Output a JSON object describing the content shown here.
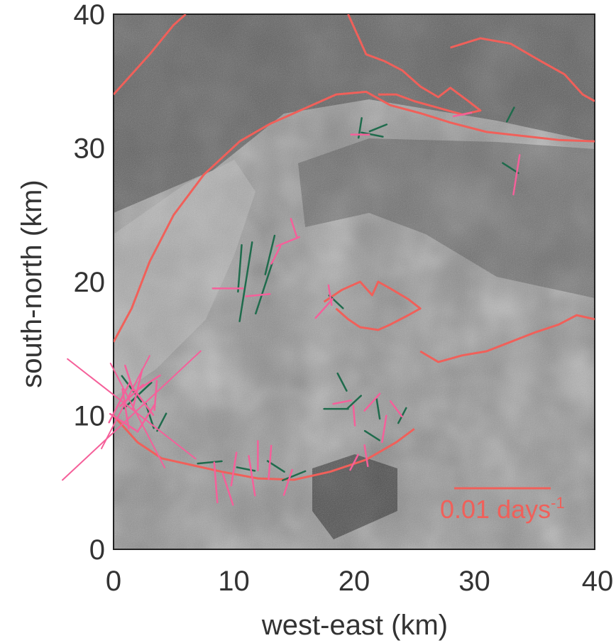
{
  "chart_data": {
    "type": "scatter",
    "title": "",
    "xlabel": "west-east (km)",
    "ylabel": "south-north (km)",
    "xlim": [
      0,
      40
    ],
    "ylim": [
      0,
      40
    ],
    "xticks": [
      "0",
      "10",
      "20",
      "30",
      "40"
    ],
    "yticks": [
      "0",
      "10",
      "20",
      "30",
      "40"
    ],
    "grid": false,
    "legend": "none",
    "background": "grayscale satellite (SAR) image of a glacier",
    "scale_bar": {
      "label": "0.01 days",
      "exponent": "-1"
    },
    "colors": {
      "outline": "#f0605a",
      "pink": "#f5609a",
      "green": "#1f6b4c",
      "text": "#333333"
    },
    "outline_km": [
      [
        0.0,
        15.5
      ],
      [
        1.5,
        18.0
      ],
      [
        3.0,
        21.5
      ],
      [
        5.0,
        25.0
      ],
      [
        7.5,
        28.0
      ],
      [
        10.5,
        30.5
      ],
      [
        13.0,
        31.8
      ],
      [
        16.0,
        33.0
      ],
      [
        18.5,
        34.0
      ],
      [
        21.0,
        34.2
      ],
      [
        23.0,
        33.2
      ],
      [
        25.5,
        32.6
      ],
      [
        28.0,
        31.9
      ],
      [
        31.0,
        31.2
      ],
      [
        34.0,
        30.9
      ],
      [
        37.0,
        30.6
      ],
      [
        40.0,
        30.5
      ]
    ],
    "outline2_km": [
      [
        0.0,
        10.0
      ],
      [
        2.0,
        8.0
      ],
      [
        4.0,
        6.8
      ],
      [
        6.5,
        6.3
      ],
      [
        9.0,
        5.8
      ],
      [
        12.0,
        5.3
      ],
      [
        15.0,
        5.2
      ],
      [
        18.0,
        5.8
      ],
      [
        21.0,
        6.7
      ],
      [
        23.5,
        8.0
      ],
      [
        25.0,
        9.0
      ]
    ],
    "outline3_km": [
      [
        17.5,
        18.5
      ],
      [
        19.0,
        19.4
      ],
      [
        20.5,
        20.0
      ],
      [
        21.5,
        19.0
      ],
      [
        22.0,
        20.0
      ],
      [
        23.0,
        19.5
      ],
      [
        24.5,
        18.7
      ],
      [
        25.5,
        18.0
      ],
      [
        24.5,
        17.5
      ],
      [
        23.0,
        16.8
      ],
      [
        22.0,
        16.4
      ],
      [
        20.5,
        16.6
      ],
      [
        19.5,
        17.2
      ],
      [
        18.5,
        18.0
      ]
    ],
    "outline4_km": [
      [
        25.5,
        14.8
      ],
      [
        27.0,
        14.0
      ],
      [
        29.0,
        14.5
      ],
      [
        31.0,
        14.8
      ],
      [
        33.0,
        15.5
      ],
      [
        35.0,
        16.2
      ],
      [
        37.0,
        16.8
      ],
      [
        38.5,
        17.5
      ],
      [
        40.0,
        17.2
      ]
    ],
    "outline5_km": [
      [
        0.0,
        34.0
      ],
      [
        1.5,
        35.5
      ],
      [
        3.0,
        37.0
      ],
      [
        5.0,
        39.2
      ],
      [
        6.0,
        40.0
      ]
    ],
    "outline6_km": [
      [
        19.5,
        40.0
      ],
      [
        21.0,
        37.0
      ],
      [
        22.5,
        36.5
      ],
      [
        24.0,
        35.8
      ],
      [
        25.5,
        34.6
      ],
      [
        27.0,
        33.8
      ],
      [
        28.0,
        34.5
      ],
      [
        29.5,
        33.5
      ],
      [
        30.5,
        32.8
      ],
      [
        29.0,
        32.5
      ],
      [
        27.0,
        33.0
      ],
      [
        25.0,
        33.5
      ],
      [
        23.5,
        34.0
      ],
      [
        22.0,
        34.0
      ]
    ],
    "outline7_km": [
      [
        28.0,
        37.5
      ],
      [
        30.5,
        38.2
      ],
      [
        33.0,
        37.8
      ],
      [
        35.5,
        36.5
      ],
      [
        37.5,
        35.5
      ],
      [
        39.0,
        34.0
      ],
      [
        40.0,
        33.5
      ]
    ],
    "ticks_pink": [
      [
        0.5,
        11.0,
        3.5,
        60
      ],
      [
        1.0,
        10.5,
        3.0,
        100
      ],
      [
        1.5,
        11.5,
        2.5,
        40
      ],
      [
        2.0,
        12.0,
        3.0,
        75
      ],
      [
        2.5,
        11.0,
        2.5,
        130
      ],
      [
        3.0,
        12.5,
        2.0,
        30
      ],
      [
        0.8,
        9.5,
        2.5,
        150
      ],
      [
        3.5,
        11.5,
        2.2,
        85
      ],
      [
        1.3,
        12.8,
        2.0,
        110
      ],
      [
        2.7,
        9.8,
        2.5,
        55
      ],
      [
        8.5,
        5.0,
        3.0,
        95
      ],
      [
        10.0,
        6.0,
        2.5,
        80
      ],
      [
        11.5,
        5.5,
        3.0,
        100
      ],
      [
        13.0,
        6.5,
        2.5,
        85
      ],
      [
        14.5,
        5.0,
        2.0,
        70
      ],
      [
        9.5,
        4.5,
        2.5,
        110
      ],
      [
        12.0,
        7.0,
        2.2,
        90
      ],
      [
        19.0,
        11.0,
        1.5,
        10
      ],
      [
        20.0,
        10.0,
        1.5,
        95
      ],
      [
        21.5,
        11.0,
        1.8,
        45
      ],
      [
        22.5,
        9.0,
        2.0,
        80
      ],
      [
        23.5,
        10.5,
        1.5,
        130
      ],
      [
        21.0,
        7.0,
        1.6,
        100
      ],
      [
        20.0,
        6.5,
        1.3,
        60
      ],
      [
        9.5,
        19.5,
        2.5,
        0
      ],
      [
        12.0,
        19.0,
        2.0,
        5
      ],
      [
        14.5,
        23.0,
        2.0,
        20
      ],
      [
        15.0,
        24.0,
        1.5,
        110
      ],
      [
        13.5,
        22.0,
        1.5,
        60
      ],
      [
        17.5,
        18.0,
        2.0,
        45
      ],
      [
        18.0,
        19.0,
        1.5,
        100
      ],
      [
        20.5,
        31.0,
        1.5,
        0
      ],
      [
        29.0,
        32.5,
        1.5,
        10
      ],
      [
        33.5,
        28.0,
        3.0,
        80
      ]
    ],
    "ticks_green": [
      [
        1.5,
        12.0,
        2.5,
        130
      ],
      [
        3.0,
        10.0,
        2.0,
        110
      ],
      [
        4.0,
        9.5,
        1.5,
        60
      ],
      [
        2.0,
        11.5,
        3.0,
        40
      ],
      [
        8.0,
        6.5,
        2.0,
        5
      ],
      [
        11.0,
        6.0,
        1.5,
        170
      ],
      [
        15.0,
        5.5,
        2.0,
        20
      ],
      [
        13.5,
        6.2,
        1.6,
        150
      ],
      [
        19.0,
        12.5,
        1.5,
        120
      ],
      [
        20.0,
        11.0,
        1.5,
        40
      ],
      [
        22.0,
        10.5,
        1.5,
        100
      ],
      [
        18.5,
        10.5,
        2.0,
        0
      ],
      [
        24.0,
        10.0,
        1.3,
        60
      ],
      [
        21.5,
        8.5,
        1.4,
        150
      ],
      [
        11.0,
        20.0,
        6.0,
        80
      ],
      [
        12.5,
        19.5,
        4.0,
        70
      ],
      [
        13.0,
        22.0,
        3.0,
        75
      ],
      [
        10.5,
        21.0,
        3.5,
        85
      ],
      [
        18.5,
        18.5,
        1.5,
        140
      ],
      [
        20.5,
        31.5,
        1.5,
        80
      ],
      [
        21.5,
        31.0,
        1.8,
        170
      ],
      [
        22.0,
        31.5,
        1.5,
        20
      ],
      [
        33.0,
        28.5,
        1.5,
        150
      ],
      [
        33.0,
        32.5,
        1.2,
        60
      ]
    ],
    "long_pink": [
      [
        1.5,
        10.0,
        15.0,
        40
      ],
      [
        1.5,
        10.5,
        13.0,
        145
      ],
      [
        1.0,
        11.0,
        8.0,
        60
      ],
      [
        2.0,
        10.0,
        9.0,
        120
      ]
    ]
  }
}
